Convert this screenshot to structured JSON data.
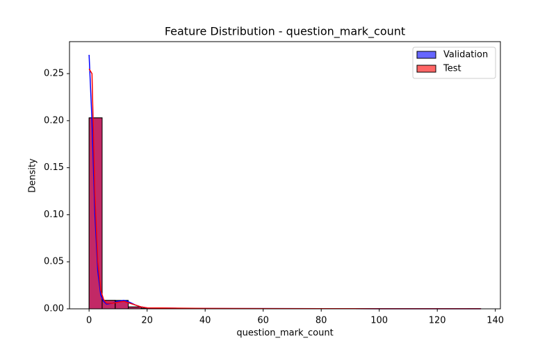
{
  "chart_data": {
    "type": "histogram",
    "title": "Feature Distribution - question_mark_count",
    "x_label": "question_mark_count",
    "y_label": "Density",
    "bins": [
      0,
      4.5,
      9,
      13.5,
      18,
      22.5,
      27,
      31.5,
      36,
      40.5,
      45,
      49.5,
      54,
      58.5,
      63,
      67.5,
      72,
      76.5,
      81,
      85.5,
      90,
      94.5,
      99,
      103.5,
      108,
      112.5,
      117,
      121.5,
      126,
      130.5,
      135
    ],
    "series": [
      {
        "name": "Validation",
        "color": "blue",
        "values": [
          0.203,
          0.009,
          0.009,
          0.002,
          0.0005,
          0.0003,
          0.0002,
          0.0001,
          0.0001,
          0.0001,
          0.0001,
          0.0001,
          0.0001,
          0.0002,
          0.0001,
          0.0001,
          0.0001,
          0,
          0,
          0.0001,
          0,
          0,
          0,
          0,
          0,
          0,
          0,
          0,
          0,
          0.0001
        ],
        "kde": [
          0.27,
          0.2,
          0.1,
          0.04,
          0.015,
          0.008,
          0.005,
          0.006,
          0.008,
          0.009,
          0.007,
          0.004,
          0.002,
          0.001,
          0.0008,
          0.0006,
          0.0004,
          0.0003,
          0.0003,
          0.0002,
          0.0001,
          0.0001,
          0.0001
        ]
      },
      {
        "name": "Test",
        "color": "red",
        "values": [
          0.203,
          0.009,
          0.008,
          0.002,
          0.0006,
          0.0003,
          0.0002,
          0.0001,
          0.0001,
          0.0001,
          0.0001,
          0.0002,
          0.0001,
          0.0001,
          0.0001,
          0.0001,
          0,
          0,
          0.0001,
          0,
          0,
          0,
          0,
          0,
          0,
          0,
          0,
          0,
          0,
          0.0001
        ],
        "kde": [
          0.255,
          0.25,
          0.12,
          0.05,
          0.02,
          0.01,
          0.006,
          0.006,
          0.007,
          0.008,
          0.006,
          0.004,
          0.002,
          0.001,
          0.0009,
          0.0007,
          0.0005,
          0.0004,
          0.0003,
          0.0002,
          0.0001,
          0.0001,
          0.0001
        ]
      }
    ],
    "kde_x": [
      0,
      1,
      2,
      3,
      4,
      5,
      6,
      8,
      10,
      12,
      14,
      16,
      18,
      20,
      25,
      30,
      40,
      50,
      60,
      80,
      100,
      120,
      135
    ],
    "xlim": [
      -6.75,
      141.75
    ],
    "ylim": [
      0,
      0.284
    ],
    "xticks": [
      0,
      20,
      40,
      60,
      80,
      100,
      120,
      140
    ],
    "yticks": [
      {
        "value": 0,
        "label": "0.00"
      },
      {
        "value": 0.05,
        "label": "0.05"
      },
      {
        "value": 0.1,
        "label": "0.10"
      },
      {
        "value": 0.15,
        "label": "0.15"
      },
      {
        "value": 0.2,
        "label": "0.20"
      },
      {
        "value": 0.25,
        "label": "0.25"
      }
    ],
    "bar_opacity": 0.6,
    "legend": "upper right"
  }
}
